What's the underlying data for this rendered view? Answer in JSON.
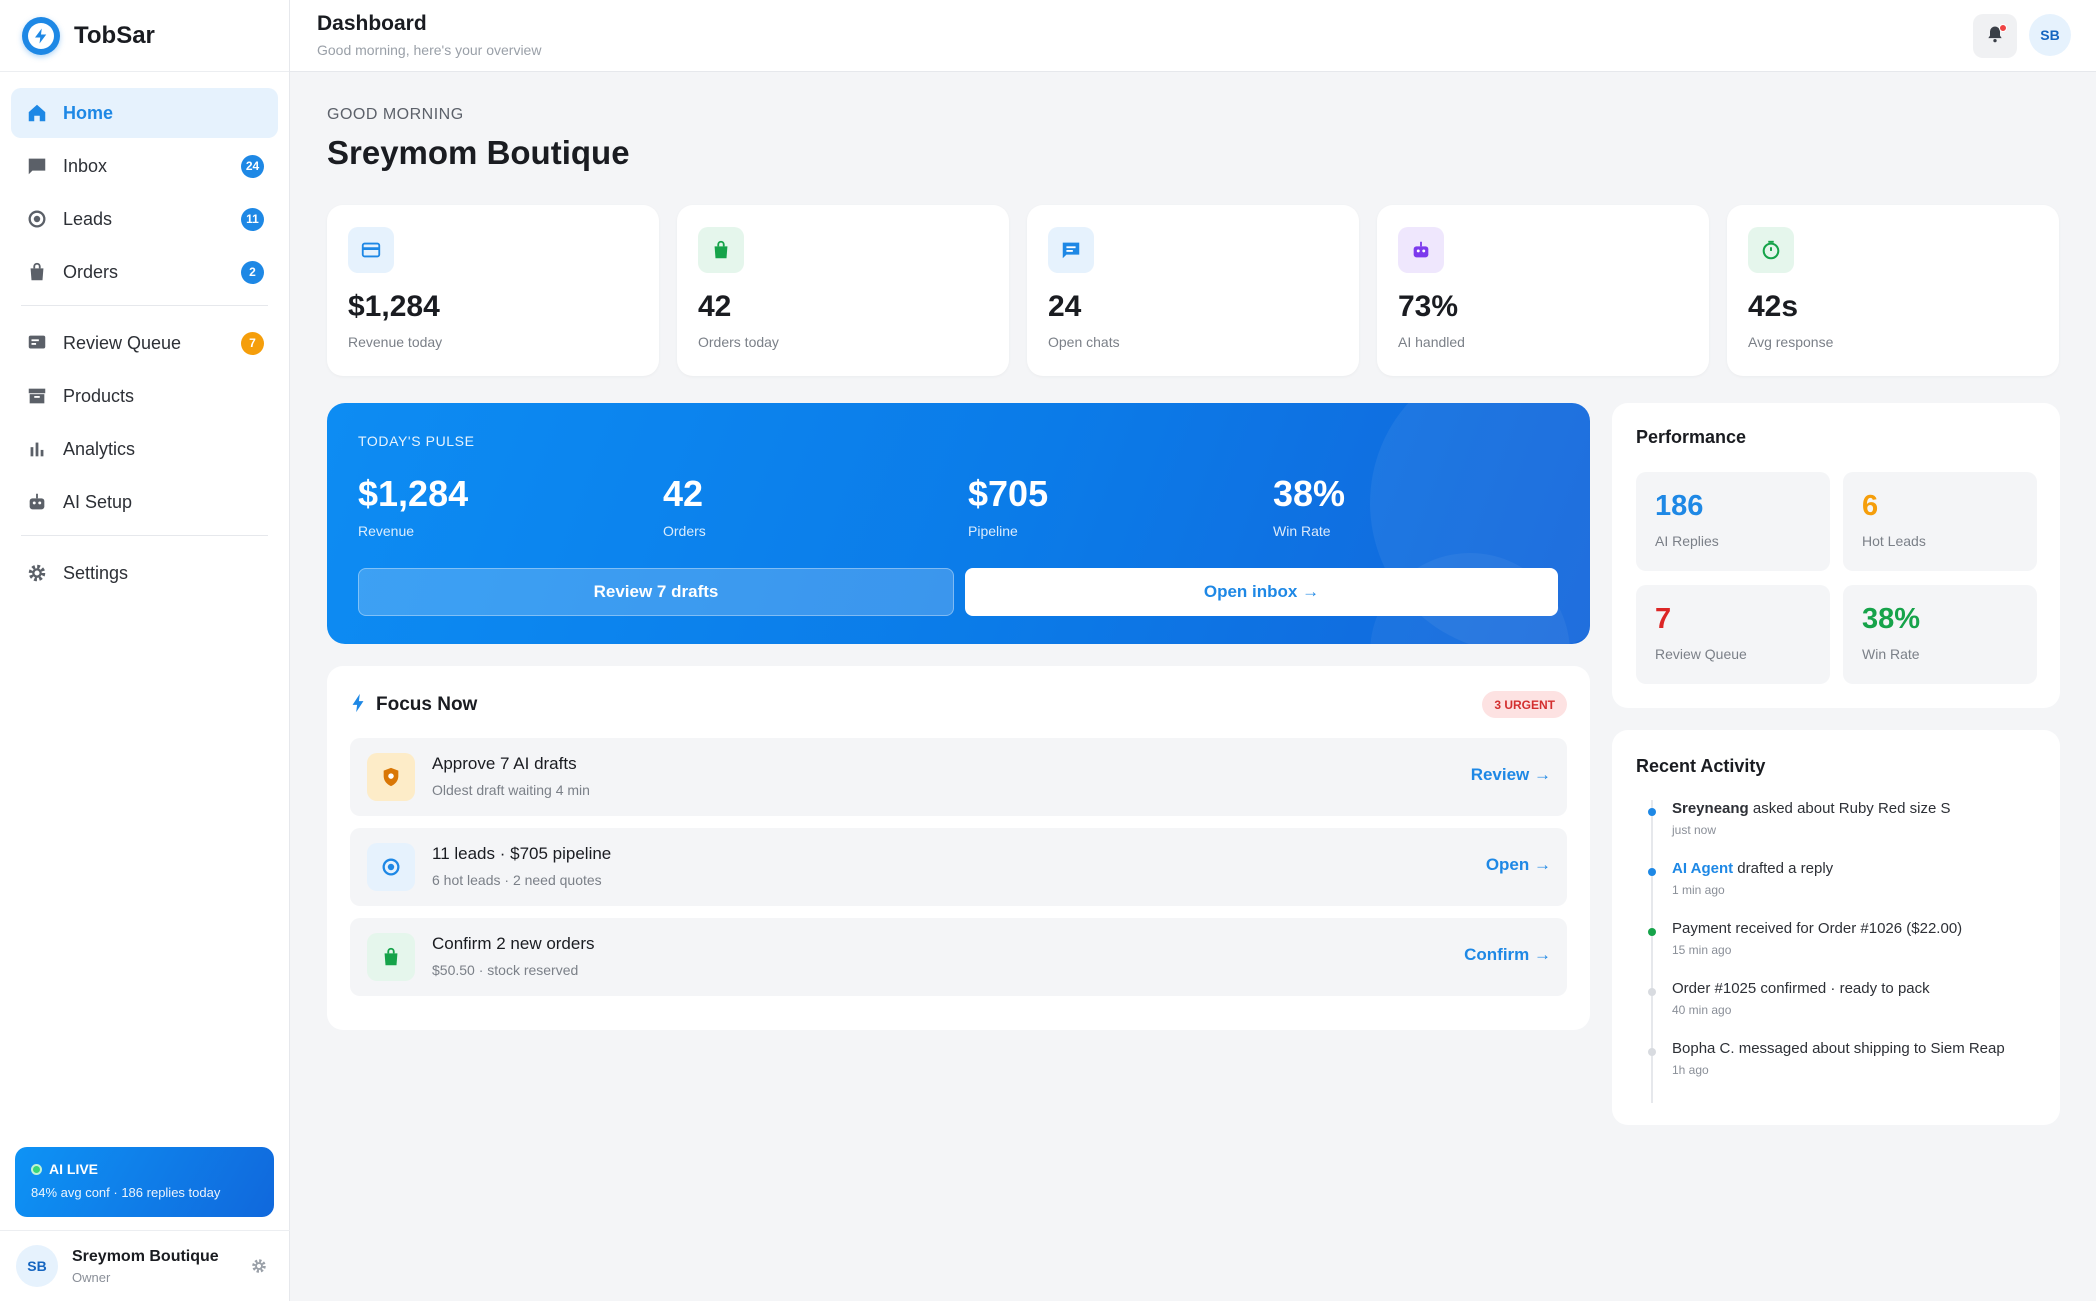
{
  "brand": {
    "name": "TobSar"
  },
  "nav": [
    {
      "label": "Home",
      "icon": "home-icon",
      "badge": null,
      "active": true
    },
    {
      "label": "Inbox",
      "icon": "chat-icon",
      "badge": "24"
    },
    {
      "label": "Leads",
      "icon": "target-icon",
      "badge": "11"
    },
    {
      "label": "Orders",
      "icon": "bag-icon",
      "badge": "2"
    },
    {
      "label": "Review Queue",
      "icon": "review-icon",
      "badge": "7"
    },
    {
      "label": "Products",
      "icon": "archive-icon",
      "badge": null
    },
    {
      "label": "Analytics",
      "icon": "bar-chart-icon",
      "badge": null
    },
    {
      "label": "AI Setup",
      "icon": "robot-icon",
      "badge": null
    },
    {
      "label": "Settings",
      "icon": "gear-icon",
      "badge": null
    }
  ],
  "ai_live": {
    "label": "AI LIVE",
    "detail": "84% avg conf · 186 replies today"
  },
  "user": {
    "initials": "SB",
    "name": "Sreymom Boutique",
    "role": "Owner"
  },
  "topbar": {
    "title": "Dashboard",
    "subtitle": "Good morning, here's your overview"
  },
  "greeting": "GOOD MORNING",
  "business_name": "Sreymom Boutique",
  "stats": [
    {
      "value": "$1,284",
      "label": "Revenue today",
      "icon": "card-icon",
      "color": "#1e88e5",
      "bg": "#e6f2fd"
    },
    {
      "value": "42",
      "label": "Orders today",
      "icon": "bag-icon",
      "color": "#16a34a",
      "bg": "#e5f6ec"
    },
    {
      "value": "24",
      "label": "Open chats",
      "icon": "chat-icon",
      "color": "#1e88e5",
      "bg": "#e6f2fd"
    },
    {
      "value": "73%",
      "label": "AI handled",
      "icon": "robot-icon",
      "color": "#7c3aed",
      "bg": "#efe7fd"
    },
    {
      "value": "42s",
      "label": "Avg response",
      "icon": "timer-icon",
      "color": "#16a34a",
      "bg": "#e5f6ec"
    }
  ],
  "pulse": {
    "title": "TODAY'S PULSE",
    "metrics": [
      {
        "value": "$1,284",
        "label": "Revenue"
      },
      {
        "value": "42",
        "label": "Orders"
      },
      {
        "value": "$705",
        "label": "Pipeline"
      },
      {
        "value": "38%",
        "label": "Win Rate"
      }
    ],
    "review_button": "Review 7 drafts",
    "inbox_button": "Open inbox →"
  },
  "focus": {
    "title": "Focus Now",
    "urgent_badge": "3 URGENT",
    "tasks": [
      {
        "title": "Approve 7 AI drafts",
        "subtitle": "Oldest draft waiting 4 min",
        "action": "Review →",
        "icon": "shield-icon",
        "color": "#b45309",
        "bg": "#fdecc8"
      },
      {
        "title": "11 leads · $705 pipeline",
        "subtitle": "6 hot leads · 2 need quotes",
        "action": "Open →",
        "icon": "target-icon",
        "color": "#1e88e5",
        "bg": "#e6f2fd"
      },
      {
        "title": "Confirm 2 new orders",
        "subtitle": "$50.50 · stock reserved",
        "action": "Confirm →",
        "icon": "bag-icon",
        "color": "#16a34a",
        "bg": "#e5f6ec"
      }
    ]
  },
  "performance": {
    "title": "Performance",
    "items": [
      {
        "value": "186",
        "label": "AI Replies",
        "color": "#1e88e5"
      },
      {
        "value": "6",
        "label": "Hot Leads",
        "color": "#f59e0b"
      },
      {
        "value": "7",
        "label": "Review Queue",
        "color": "#dc2626"
      },
      {
        "value": "38%",
        "label": "Win Rate",
        "color": "#16a34a"
      }
    ]
  },
  "recent": {
    "title": "Recent Activity",
    "items": [
      {
        "actor": "Sreyneang",
        "text": " asked about Ruby Red size S",
        "time": "just now",
        "dot": "#1e88e5",
        "actor_style": "bold"
      },
      {
        "actor": "AI Agent",
        "text": " drafted a reply",
        "time": "1 min ago",
        "dot": "#1e88e5",
        "actor_style": "blue"
      },
      {
        "actor": "",
        "text": "Payment received for Order #1026 ($22.00)",
        "time": "15 min ago",
        "dot": "#16a34a",
        "actor_style": "none"
      },
      {
        "actor": "",
        "text": "Order #1025 confirmed · ready to pack",
        "time": "40 min ago",
        "dot": "#d8dbe0",
        "actor_style": "none"
      },
      {
        "actor": "",
        "text": "Bopha C. messaged about shipping to Siem Reap",
        "time": "1h ago",
        "dot": "#d8dbe0",
        "actor_style": "none"
      }
    ]
  }
}
